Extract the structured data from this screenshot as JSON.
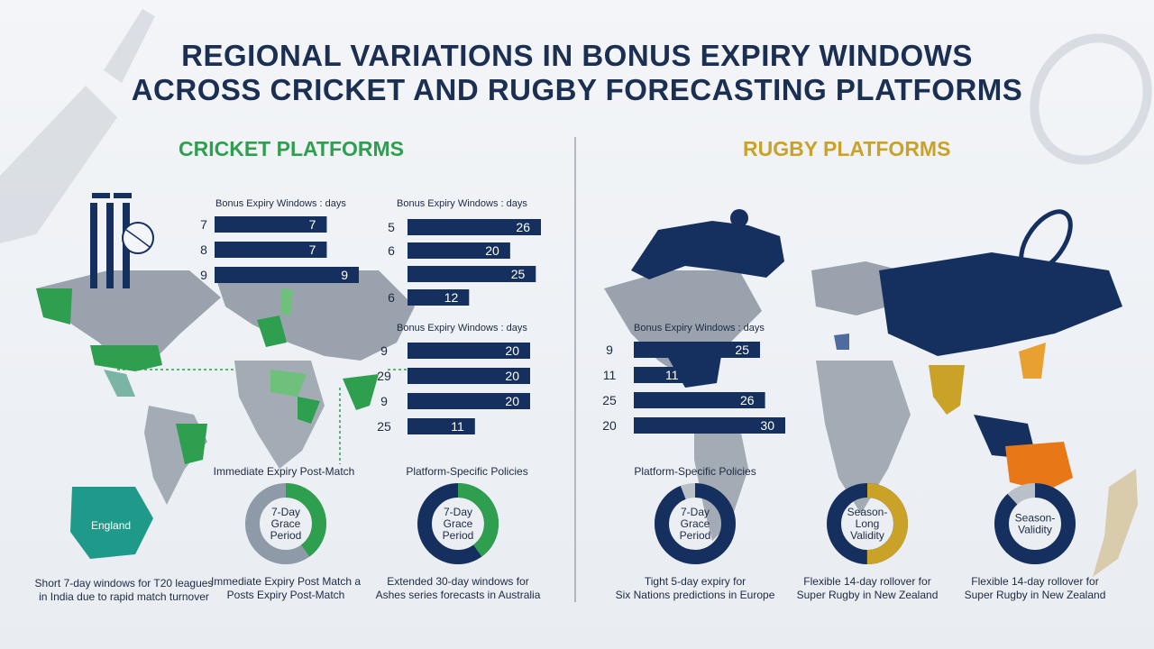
{
  "title_line1": "REGIONAL VARIATIONS IN BONUS EXPIRY WINDOWS",
  "title_line2": "ACROSS CRICKET AND RUGBY FORECASTING PLATFORMS",
  "cricket_header": "CRICKET PLATFORMS",
  "rugby_header": "RUGBY PLATFORMS",
  "map_label": "England",
  "colors": {
    "navy": "#15305f",
    "green": "#2e9e4f",
    "gold": "#c9a227",
    "orange": "#e87817",
    "grey": "#b9c0c8",
    "teal": "#1f9a8a"
  },
  "chart_data": [
    {
      "type": "bar",
      "subtitle": "Bonus Expiry Windows : days",
      "categories": [
        "7",
        "8",
        "9"
      ],
      "values": [
        7,
        7,
        9
      ]
    },
    {
      "type": "bar",
      "subtitle": "Bonus Expiry Windows : days",
      "categories": [
        "5",
        "6",
        "",
        ""
      ],
      "values": [
        26,
        20,
        25,
        12
      ],
      "left_labels": [
        "5",
        "6",
        "",
        "6"
      ]
    },
    {
      "type": "bar",
      "subtitle": "Bonus Expiry Windows : days",
      "categories": [
        "9",
        "29",
        "9",
        "25"
      ],
      "values": [
        20,
        20,
        20,
        11
      ]
    },
    {
      "type": "bar",
      "subtitle": "Bonus Expiry Windows : days",
      "categories": [
        "9",
        "11",
        "25",
        "20"
      ],
      "values": [
        25,
        11,
        26,
        30
      ]
    }
  ],
  "donuts": [
    {
      "heading": "Immediate Expiry Post-Match",
      "label_lines": [
        "7-Day",
        "Grace",
        "Period"
      ],
      "fraction": 0.4,
      "color": "#2e9e4f",
      "base": "#8e9aa8",
      "caption": [
        "Immediate Expiry Post Match a",
        "Posts Expiry Post-Match"
      ]
    },
    {
      "heading": "Platform-Specific Policies",
      "label_lines": [
        "7-Day",
        "Grace",
        "Period"
      ],
      "fraction": 0.4,
      "color": "#2e9e4f",
      "base": "#15305f",
      "caption": [
        "Extended 30-day windows for",
        "Ashes series forecasts in Australia"
      ]
    },
    {
      "heading": "Platform-Specific Policies",
      "label_lines": [
        "7-Day",
        "Grace",
        "Period"
      ],
      "fraction": 0.94,
      "color": "#15305f",
      "base": "#b9c0c8",
      "caption": [
        "Tight 5-day expiry for",
        "Six Nations predictions in Europe"
      ]
    },
    {
      "heading": "",
      "label_lines": [
        "Season-",
        "Long",
        "Validity"
      ],
      "fraction": 0.5,
      "color": "#c9a227",
      "base": "#15305f",
      "caption": [
        "Flexible 14-day rollover for",
        "Super Rugby in New Zealand"
      ]
    },
    {
      "heading": "",
      "label_lines": [
        "Season-",
        "Validity"
      ],
      "fraction": 0.88,
      "color": "#15305f",
      "base": "#b9c0c8",
      "caption": [
        "Flexible 14-day rollover for",
        "Super Rugby in New Zealand"
      ]
    }
  ],
  "left_caption": [
    "Short 7-day windows for T20 leagues",
    "in India due to rapid match turnover"
  ]
}
